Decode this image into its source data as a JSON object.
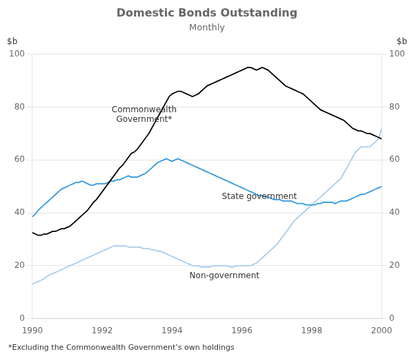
{
  "chart_data": {
    "type": "line",
    "title": "Domestic Bonds Outstanding",
    "subtitle": "Monthly",
    "ylabel": "$b",
    "y2label": "$b",
    "footnote": "*Excluding the Commonwealth Government’s own holdings",
    "xlim": [
      1990,
      2000
    ],
    "xticks": [
      1990,
      1992,
      1994,
      1996,
      1998,
      2000
    ],
    "ylim": [
      0,
      100
    ],
    "yticks": [
      0,
      20,
      40,
      60,
      80,
      100
    ],
    "y2lim": [
      0,
      100
    ],
    "y2ticks": [
      0,
      20,
      40,
      60,
      80,
      100
    ],
    "grid": true,
    "x": [
      1990.0,
      1990.083,
      1990.167,
      1990.25,
      1990.333,
      1990.417,
      1990.5,
      1990.583,
      1990.667,
      1990.75,
      1990.833,
      1990.917,
      1991.0,
      1991.083,
      1991.167,
      1991.25,
      1991.333,
      1991.417,
      1991.5,
      1991.583,
      1991.667,
      1991.75,
      1991.833,
      1991.917,
      1992.0,
      1992.083,
      1992.167,
      1992.25,
      1992.333,
      1992.417,
      1992.5,
      1992.583,
      1992.667,
      1992.75,
      1992.833,
      1992.917,
      1993.0,
      1993.083,
      1993.167,
      1993.25,
      1993.333,
      1993.417,
      1993.5,
      1993.583,
      1993.667,
      1993.75,
      1993.833,
      1993.917,
      1994.0,
      1994.083,
      1994.167,
      1994.25,
      1994.333,
      1994.417,
      1994.5,
      1994.583,
      1994.667,
      1994.75,
      1994.833,
      1994.917,
      1995.0,
      1995.083,
      1995.167,
      1995.25,
      1995.333,
      1995.417,
      1995.5,
      1995.583,
      1995.667,
      1995.75,
      1995.833,
      1995.917,
      1996.0,
      1996.083,
      1996.167,
      1996.25,
      1996.333,
      1996.417,
      1996.5,
      1996.583,
      1996.667,
      1996.75,
      1996.833,
      1996.917,
      1997.0,
      1997.083,
      1997.167,
      1997.25,
      1997.333,
      1997.417,
      1997.5,
      1997.583,
      1997.667,
      1997.75,
      1997.833,
      1997.917,
      1998.0,
      1998.083,
      1998.167,
      1998.25,
      1998.333,
      1998.417,
      1998.5,
      1998.583,
      1998.667,
      1998.75,
      1998.833,
      1998.917,
      1999.0,
      1999.083,
      1999.167,
      1999.25,
      1999.333,
      1999.417,
      1999.5,
      1999.583,
      1999.667,
      1999.75,
      1999.833,
      1999.917,
      2000.0
    ],
    "series": [
      {
        "color": "#000000",
        "values": [
          32.5,
          32,
          31.5,
          31.5,
          32,
          32,
          32.5,
          33,
          33,
          33.5,
          34,
          34,
          34.5,
          35,
          36,
          37,
          38,
          39,
          40,
          41,
          42.5,
          44,
          45,
          46.5,
          48,
          49.5,
          51,
          52.5,
          54,
          55.5,
          57,
          58,
          59.5,
          61,
          62.5,
          63,
          64,
          65.5,
          67,
          68.5,
          70,
          72,
          74,
          76,
          78,
          80,
          82,
          84,
          85,
          85.5,
          86,
          86,
          85.5,
          85,
          84.5,
          84,
          84.5,
          85,
          86,
          87,
          88,
          88.5,
          89,
          89.5,
          90,
          90.5,
          91,
          91.5,
          92,
          92.5,
          93,
          93.5,
          94,
          94.5,
          95,
          95,
          94.5,
          94,
          94.5,
          95,
          94.5,
          94,
          93,
          92,
          91,
          90,
          89,
          88,
          87.5,
          87,
          86.5,
          86,
          85.5,
          85,
          84,
          83,
          82,
          81,
          80,
          79,
          78.5,
          78,
          77.5,
          77,
          76.5,
          76,
          75.5,
          75,
          74,
          73,
          72,
          71.5,
          71,
          71,
          70.5,
          70,
          70,
          69.5,
          69,
          68.5,
          68
        ]
      },
      {
        "color": "#3399dd",
        "values": [
          38.5,
          39.5,
          41,
          42,
          43,
          44,
          45,
          46,
          47,
          48,
          49,
          49.5,
          50,
          50.5,
          51,
          51.5,
          51.5,
          52,
          51.5,
          51,
          50.5,
          50.5,
          51,
          51,
          51,
          51,
          51.5,
          52,
          52,
          52.5,
          52.5,
          53,
          53.5,
          54,
          53.5,
          53.5,
          53.5,
          54,
          54.5,
          55,
          56,
          57,
          58,
          59,
          59.5,
          60,
          60.5,
          60,
          59.5,
          60,
          60.5,
          60,
          59.5,
          59,
          58.5,
          58,
          57.5,
          57,
          56.5,
          56,
          55.5,
          55,
          54.5,
          54,
          53.5,
          53,
          52.5,
          52,
          51.5,
          51,
          50.5,
          50,
          49.5,
          49,
          48.5,
          48,
          47.5,
          47,
          46.5,
          46.5,
          46,
          46,
          45.5,
          45,
          45,
          45,
          44.5,
          44.5,
          44.5,
          44.5,
          44,
          43.5,
          43.5,
          43.5,
          43,
          43,
          43,
          43,
          43.5,
          43.5,
          44,
          44,
          44,
          44,
          43.5,
          44,
          44.5,
          44.5,
          44.5,
          45,
          45.5,
          46,
          46.5,
          47,
          47,
          47.5,
          48,
          48.5,
          49,
          49.5,
          50
        ]
      },
      {
        "color": "#aaccee",
        "values": [
          13,
          13.5,
          14,
          14.5,
          15,
          16,
          16.5,
          17,
          17.5,
          18,
          18.5,
          19,
          19.5,
          20,
          20.5,
          21,
          21.5,
          22,
          22.5,
          23,
          23.5,
          24,
          24.5,
          25,
          25.5,
          26,
          26.5,
          27,
          27.5,
          27.5,
          27.5,
          27.5,
          27.5,
          27,
          27,
          27,
          27,
          27,
          26.5,
          26.5,
          26.5,
          26,
          26,
          25.5,
          25.5,
          25,
          24.5,
          24,
          23.5,
          23,
          22.5,
          22,
          21.5,
          21,
          20.5,
          20,
          20,
          20,
          19.5,
          19.5,
          19.5,
          19.5,
          20,
          20,
          20,
          20,
          20,
          20,
          19.5,
          19.5,
          20,
          20,
          20,
          20,
          20,
          20,
          20.5,
          21,
          22,
          23,
          24,
          25,
          26,
          27,
          28,
          29.5,
          31,
          32.5,
          34,
          35.5,
          37,
          38,
          39,
          40,
          41,
          42,
          43,
          44,
          45,
          46,
          47,
          48,
          49,
          50,
          51,
          52,
          53,
          55,
          57,
          59,
          61,
          63,
          64,
          65,
          65,
          65,
          65,
          66,
          67,
          68,
          72
        ]
      }
    ],
    "annotations": [
      {
        "text": "Commonwealth\nGovernment*",
        "x": 1993.2,
        "y": 77
      },
      {
        "text": "State government",
        "x": 1996.5,
        "y": 46
      },
      {
        "text": "Non-government",
        "x": 1995.5,
        "y": 16
      }
    ]
  }
}
